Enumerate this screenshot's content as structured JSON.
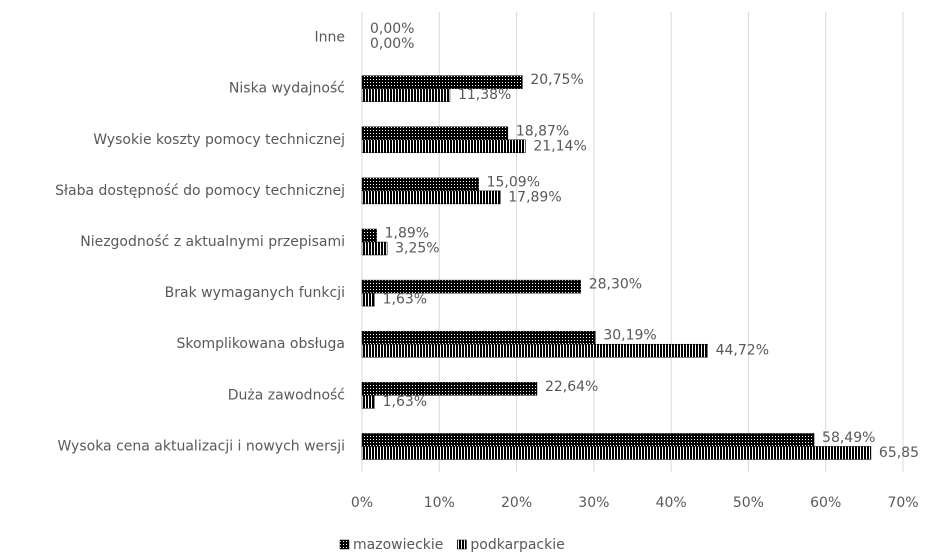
{
  "chart_data": {
    "type": "bar",
    "orientation": "horizontal",
    "categories": [
      "Inne",
      "Niska wydajność",
      "Wysokie koszty pomocy technicznej",
      "Słaba dostępność do pomocy technicznej",
      "Niezgodność z aktualnymi przepisami",
      "Brak wymaganych funkcji",
      "Skomplikowana obsługa",
      "Duża zawodność",
      "Wysoka cena aktualizacji i nowych wersji"
    ],
    "series": [
      {
        "name": "mazowieckie",
        "color": "#000000",
        "pattern": "dots",
        "values": [
          0,
          20.75,
          18.87,
          15.09,
          1.89,
          28.3,
          30.19,
          22.64,
          58.49
        ],
        "value_labels": [
          "0,00%",
          "20,75%",
          "18,87%",
          "15,09%",
          "1,89%",
          "28,30%",
          "30,19%",
          "22,64%",
          "58,49%"
        ]
      },
      {
        "name": "podkarpackie",
        "color": "#000000",
        "pattern": "stripes",
        "values": [
          0,
          11.38,
          21.14,
          17.89,
          3.25,
          1.63,
          44.72,
          1.63,
          65.85
        ],
        "value_labels": [
          "0,00%",
          "11,38%",
          "21,14%",
          "17,89%",
          "3,25%",
          "1,63%",
          "44,72%",
          "1,63%",
          "65,85"
        ]
      }
    ],
    "xlim": [
      0,
      70
    ],
    "xticks": [
      {
        "value": 0,
        "label": "0%"
      },
      {
        "value": 10,
        "label": "10%"
      },
      {
        "value": 20,
        "label": "20%"
      },
      {
        "value": 30,
        "label": "30%"
      },
      {
        "value": 40,
        "label": "40%"
      },
      {
        "value": 50,
        "label": "50%"
      },
      {
        "value": 60,
        "label": "60%"
      },
      {
        "value": 70,
        "label": "70%"
      }
    ],
    "grid": true,
    "legend": "bottom"
  }
}
